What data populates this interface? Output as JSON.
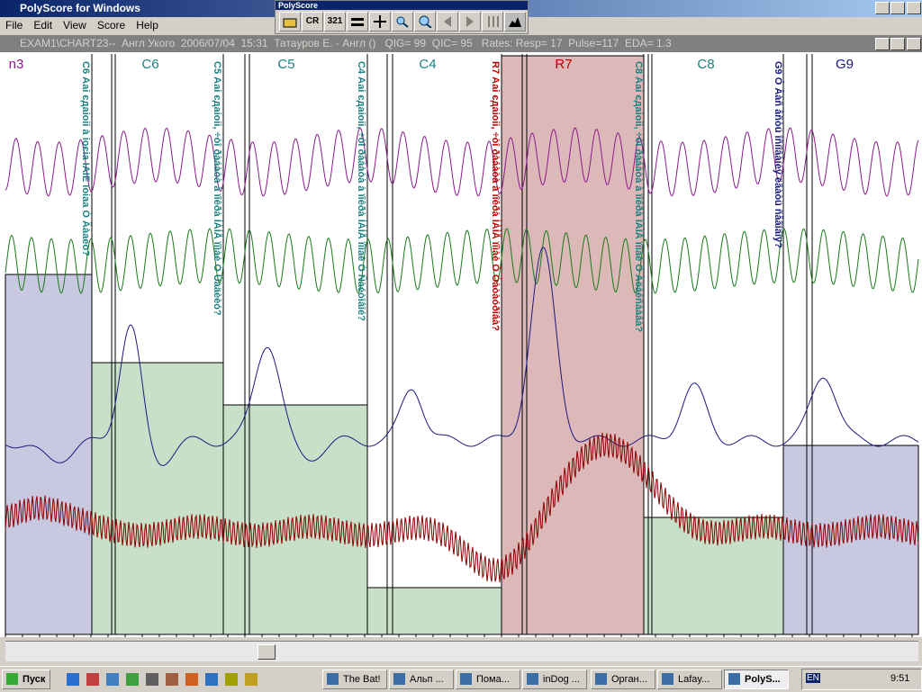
{
  "app": {
    "title": "PolyScore for Windows",
    "menu": [
      "File",
      "Edit",
      "View",
      "Score",
      "Help"
    ]
  },
  "toolbar": {
    "title": "PolyScore",
    "buttons": [
      "CR",
      "321"
    ]
  },
  "chart_window": {
    "title": "EXAM1\\CHART23--  Англ Укого  2006/07/04  15:31  Татауров Е. - Англ ()",
    "qig": "QIG= 99",
    "qic": "QIC= 95",
    "rates": "Rates: Resp= 17  Pulse=117  EDA= 1.3"
  },
  "columns": [
    "n3",
    "C6",
    "C5",
    "C4",
    "R7",
    "C8",
    "G9"
  ],
  "questions": [
    "C6  Ааі єдаіоіі à іоєіа ІАІЕ їоіаа Ó Äàaeo?",
    "C5  Ааі єдаіоіі, ÷òî ðàáàòà à ïîêðà ÌÀÌÅ ïîìàè Ó Ùàäèèó?",
    "C4  Ааі єдаіоіі, ÷òî ðàáàòà à ïîêðà ÌÀÌÅ ïîìàè Ó Ñàéòîâîé?",
    "R7  Ааі єдаіоіі, ÷òî ðàáàòà à ïîêðà ÌÀÌÅ ïîìàè Ó Òàòàóðîâà?",
    "C8  Ааі єдаіоіі, ÷òî ðàáàòà à ïîêðà ÌÀÌÅ ïîìàè Ó Àëåêñååâà?",
    "G9  Ó Âàñ åñòü îñíîâàíèÿ ëãàòü ñåãîäíÿ?"
  ],
  "taskbar": {
    "start": "Пуск",
    "tasks": [
      "The Bat!",
      "Альп ...",
      "Пома...",
      "inDog ...",
      "Орган...",
      "Lafay...",
      "PolyS..."
    ],
    "lang": "EN",
    "clock": "9:51"
  }
}
